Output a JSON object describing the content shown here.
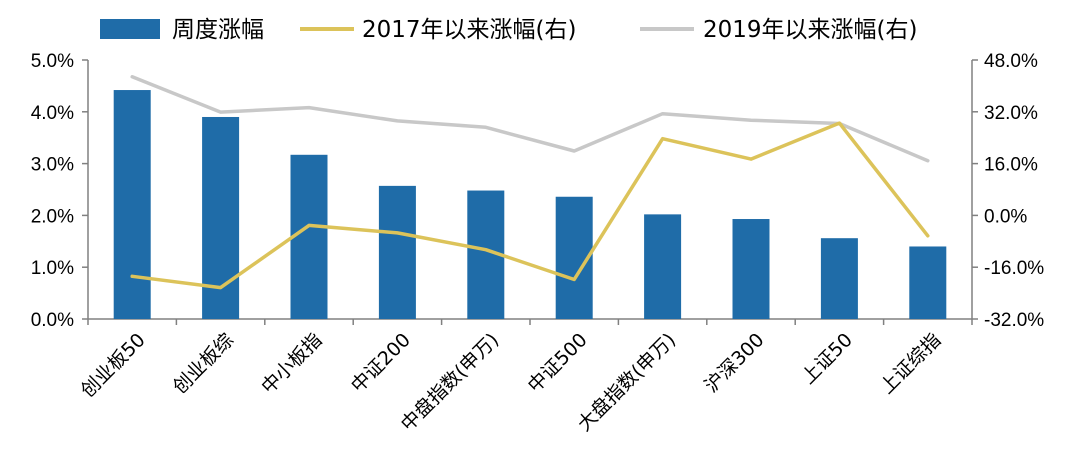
{
  "chart_data": {
    "type": "bar+line",
    "categories": [
      "创业板50",
      "创业板综",
      "中小板指",
      "中证200",
      "中盘指数(申万)",
      "中证500",
      "大盘指数(申万)",
      "沪深300",
      "上证50",
      "上证综指"
    ],
    "series": [
      {
        "name": "周度涨幅",
        "type": "bar",
        "axis": "left",
        "color": "#1f6ca8",
        "values": [
          4.42,
          3.9,
          3.17,
          2.57,
          2.48,
          2.36,
          2.02,
          1.93,
          1.56,
          1.4
        ]
      },
      {
        "name": "2017年以来涨幅(右)",
        "type": "line",
        "axis": "right",
        "color": "#dcc35a",
        "values": [
          -18.8,
          -22.3,
          -3.1,
          -5.4,
          -10.6,
          -19.8,
          23.7,
          17.4,
          28.5,
          -6.3
        ]
      },
      {
        "name": "2019年以来涨幅(右)",
        "type": "line",
        "axis": "right",
        "color": "#c8c8c8",
        "values": [
          42.8,
          31.9,
          33.3,
          29.2,
          27.2,
          19.9,
          31.4,
          29.4,
          28.4,
          16.9
        ]
      }
    ],
    "y_left": {
      "range": [
        0,
        5
      ],
      "ticks": [
        0,
        1,
        2,
        3,
        4,
        5
      ],
      "tick_labels": [
        "0.0%",
        "1.0%",
        "2.0%",
        "3.0%",
        "4.0%",
        "5.0%"
      ]
    },
    "y_right": {
      "range": [
        -32,
        48
      ],
      "ticks": [
        -32,
        -16,
        0,
        16,
        32,
        48
      ],
      "tick_labels": [
        "-32.0%",
        "-16.0%",
        "0.0%",
        "16.0%",
        "32.0%",
        "48.0%"
      ]
    },
    "legend_position": "top",
    "grid": false
  }
}
